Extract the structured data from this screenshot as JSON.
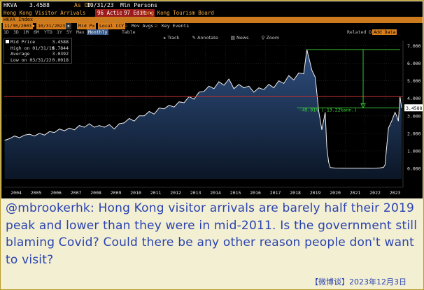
{
  "terminal": {
    "ticker": "HKVA",
    "last_value": "3.4588",
    "as_of": "As Of",
    "as_of_date": "10/31/23",
    "units": "Mln Persons",
    "title": "Hong Kong Visitor Arrivals",
    "source": "Hong Kong Tourism Board",
    "actions_label": "96 Actions ▾",
    "edit_label": "97 Edit ▾",
    "index_label": "HKVA Index",
    "start_date": "11/30/2003",
    "end_date": "10/31/2023",
    "price_field": "Mid Px",
    "local_ccy": "Local CCY",
    "mov_avgs": "Mov Avgs",
    "key_events": "Key Events",
    "range_buttons": [
      "1D",
      "3D",
      "1M",
      "6M",
      "YTD",
      "1Y",
      "5Y",
      "Max"
    ],
    "period": "Monthly",
    "table_label": "Table",
    "related_data": "Related Dat",
    "add_data": "Add Data",
    "tools": [
      "Track",
      "Annotate",
      "News",
      "Zoom"
    ],
    "legend": {
      "mid_price_label": "Mid Price",
      "mid_price": "3.4588",
      "high_label": "High on 01/31/19",
      "high": "6.7844",
      "average_label": "Average",
      "average": "3.0392",
      "low_label": "Low on 03/31/22",
      "low": "0.0018"
    },
    "change_annotation": "-49.01% (-13.22%ann.)",
    "current_tag": "3.4588"
  },
  "caption": {
    "text": "@mbrookerhk: Hong Kong visitor arrivals are barely half their 2019 peak and lower than they were in mid-2011. Is the government still blaming Covid? Could there be any other reason people don't want to visit?",
    "source": "【微博谈】2023年12月3日"
  },
  "chart_data": {
    "type": "area",
    "title": "Hong Kong Visitor Arrivals",
    "ylabel": "Mln Persons",
    "xlabel": "",
    "x_ticks": [
      "2004",
      "2005",
      "2006",
      "2007",
      "2008",
      "2009",
      "2010",
      "2011",
      "2012",
      "2013",
      "2014",
      "2015",
      "2016",
      "2017",
      "2018",
      "2019",
      "2020",
      "2021",
      "2022",
      "2023"
    ],
    "y_ticks": [
      "0.000",
      "1.000",
      "2.000",
      "3.000",
      "4.000",
      "5.000",
      "6.000",
      "7.000"
    ],
    "ylim": [
      -0.6,
      7.3
    ],
    "xlim": [
      2003.9,
      2023.9
    ],
    "grid": true,
    "reference_line": 4.1,
    "peak": {
      "date": "2019-01",
      "value": 6.7844
    },
    "latest": {
      "date": "2023-10",
      "value": 3.4588
    },
    "series": [
      {
        "x": [
          2003.92,
          2004.17,
          2004.42,
          2004.67,
          2004.92,
          2005.17,
          2005.42,
          2005.67,
          2005.92,
          2006.17,
          2006.42,
          2006.67,
          2006.92,
          2007.17,
          2007.42,
          2007.67,
          2007.92,
          2008.17,
          2008.42,
          2008.67,
          2008.92,
          2009.17,
          2009.42,
          2009.67,
          2009.92,
          2010.17,
          2010.42,
          2010.67,
          2010.92,
          2011.17,
          2011.42,
          2011.67,
          2011.92,
          2012.17,
          2012.42,
          2012.67,
          2012.92,
          2013.17,
          2013.42,
          2013.67,
          2013.92,
          2014.17,
          2014.42,
          2014.67,
          2014.92,
          2015.17,
          2015.42,
          2015.67,
          2015.92,
          2016.17,
          2016.42,
          2016.67,
          2016.92,
          2017.17,
          2017.42,
          2017.67,
          2017.92,
          2018.17,
          2018.42,
          2018.67,
          2018.92,
          2019.08,
          2019.33,
          2019.5,
          2019.67,
          2019.83,
          2020.0,
          2020.08,
          2020.17,
          2020.25,
          2020.5,
          2021.0,
          2021.5,
          2022.0,
          2022.25,
          2022.5,
          2022.75,
          2022.92,
          2023.0,
          2023.08,
          2023.17,
          2023.33,
          2023.5,
          2023.58,
          2023.67,
          2023.75,
          2023.83
        ],
        "values": [
          1.6,
          1.7,
          1.85,
          1.75,
          1.9,
          1.95,
          1.85,
          2.0,
          1.9,
          2.1,
          2.05,
          2.25,
          2.15,
          2.3,
          2.2,
          2.45,
          2.35,
          2.55,
          2.35,
          2.45,
          2.35,
          2.5,
          2.25,
          2.55,
          2.6,
          2.85,
          2.7,
          3.0,
          3.0,
          3.25,
          3.1,
          3.45,
          3.4,
          3.6,
          3.5,
          3.8,
          3.75,
          4.1,
          3.95,
          4.35,
          4.4,
          4.7,
          4.55,
          4.95,
          4.75,
          5.1,
          4.55,
          4.8,
          4.6,
          4.7,
          4.35,
          4.6,
          4.5,
          4.8,
          4.6,
          5.0,
          4.85,
          5.3,
          5.05,
          5.45,
          5.4,
          6.78,
          5.6,
          5.2,
          3.3,
          2.2,
          3.2,
          1.2,
          0.35,
          0.05,
          0.02,
          0.01,
          0.01,
          0.005,
          0.002,
          0.01,
          0.03,
          0.06,
          0.2,
          1.2,
          2.3,
          2.7,
          3.2,
          3.0,
          2.7,
          4.1,
          3.46
        ]
      }
    ]
  }
}
